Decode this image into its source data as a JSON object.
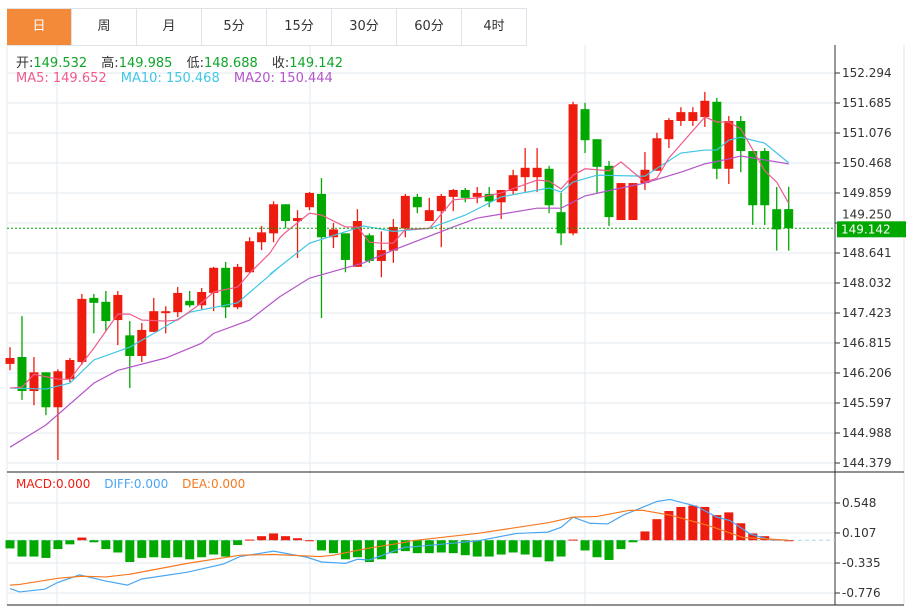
{
  "tabs": [
    "日",
    "周",
    "月",
    "5分",
    "15分",
    "30分",
    "60分",
    "4时"
  ],
  "active_tab": 0,
  "ohlc": {
    "open_label": "开:",
    "open": "149.532",
    "high_label": "高:",
    "high": "149.985",
    "low_label": "低:",
    "low": "148.688",
    "close_label": "收:",
    "close": "149.142"
  },
  "ma": {
    "ma5": "MA5: 149.652",
    "ma10": "MA10: 150.468",
    "ma20": "MA20: 150.444"
  },
  "macd_info": {
    "macd": "MACD:0.000",
    "diff": "DIFF:0.000",
    "dea": "DEA:0.000"
  },
  "colors": {
    "up": "#ee1c0f",
    "down": "#00a800",
    "ma5": "#ef5b8c",
    "ma10": "#3fc6e3",
    "ma20": "#b455c8",
    "diff": "#4aa6f2",
    "dea": "#f57a22",
    "accent": "#f28a3a"
  },
  "chart_data": {
    "type": "candlestick",
    "price_ticks": [
      "152.294",
      "151.685",
      "151.076",
      "150.468",
      "149.859",
      "149.250",
      "148.641",
      "148.032",
      "147.423",
      "146.815",
      "146.206",
      "145.597",
      "144.988",
      "144.379"
    ],
    "price_range": [
      144.379,
      152.294
    ],
    "last_price": "149.142",
    "macd_ticks": [
      "0.548",
      "0.107",
      "-0.335",
      "-0.776"
    ],
    "macd_range": [
      -0.776,
      0.548
    ],
    "candles": [
      [
        146.39,
        146.73,
        146.26,
        146.51
      ],
      [
        146.53,
        147.36,
        145.66,
        145.84
      ],
      [
        145.84,
        146.53,
        145.55,
        146.22
      ],
      [
        146.22,
        146.22,
        145.35,
        145.51
      ],
      [
        145.51,
        146.28,
        144.44,
        146.24
      ],
      [
        146.08,
        146.51,
        146.02,
        146.47
      ],
      [
        146.43,
        147.81,
        146.37,
        147.71
      ],
      [
        147.73,
        147.81,
        147.01,
        147.63
      ],
      [
        147.65,
        147.87,
        147.04,
        147.26
      ],
      [
        147.28,
        147.87,
        146.77,
        147.79
      ],
      [
        146.97,
        147.26,
        145.9,
        146.55
      ],
      [
        146.55,
        147.22,
        146.43,
        147.08
      ],
      [
        147.04,
        147.73,
        147.04,
        147.46
      ],
      [
        147.42,
        147.56,
        147.01,
        147.46
      ],
      [
        147.44,
        147.95,
        147.34,
        147.83
      ],
      [
        147.67,
        147.87,
        147.54,
        147.58
      ],
      [
        147.58,
        147.93,
        147.5,
        147.85
      ],
      [
        147.83,
        148.36,
        147.46,
        148.34
      ],
      [
        148.34,
        148.46,
        147.32,
        147.54
      ],
      [
        147.54,
        148.42,
        147.5,
        148.36
      ],
      [
        148.25,
        148.96,
        148.23,
        148.88
      ],
      [
        148.86,
        149.19,
        148.7,
        149.06
      ],
      [
        149.04,
        149.69,
        148.86,
        149.63
      ],
      [
        149.63,
        149.63,
        149.14,
        149.29
      ],
      [
        149.29,
        149.51,
        148.54,
        149.35
      ],
      [
        149.57,
        149.88,
        149.51,
        149.86
      ],
      [
        149.84,
        150.16,
        147.32,
        148.96
      ],
      [
        148.96,
        149.25,
        148.74,
        149.12
      ],
      [
        149.04,
        149.04,
        148.25,
        148.5
      ],
      [
        148.36,
        149.53,
        148.36,
        149.29
      ],
      [
        149.0,
        149.04,
        148.44,
        148.48
      ],
      [
        148.48,
        149.08,
        148.15,
        148.7
      ],
      [
        148.69,
        149.33,
        148.44,
        149.17
      ],
      [
        149.14,
        149.84,
        148.96,
        149.8
      ],
      [
        149.78,
        149.84,
        149.45,
        149.57
      ],
      [
        149.29,
        149.76,
        149.29,
        149.51
      ],
      [
        149.49,
        149.84,
        148.76,
        149.8
      ],
      [
        149.78,
        149.94,
        149.49,
        149.92
      ],
      [
        149.92,
        149.96,
        149.67,
        149.76
      ],
      [
        149.78,
        149.98,
        149.65,
        149.86
      ],
      [
        149.84,
        149.98,
        149.57,
        149.69
      ],
      [
        149.67,
        149.92,
        149.33,
        149.92
      ],
      [
        149.9,
        150.33,
        149.82,
        150.22
      ],
      [
        150.18,
        150.77,
        149.88,
        150.37
      ],
      [
        150.18,
        150.77,
        149.88,
        150.37
      ],
      [
        150.35,
        150.41,
        149.45,
        149.61
      ],
      [
        149.47,
        149.86,
        148.8,
        149.04
      ],
      [
        149.04,
        151.71,
        149.0,
        151.66
      ],
      [
        151.56,
        151.69,
        150.67,
        150.93
      ],
      [
        150.95,
        150.95,
        149.86,
        150.39
      ],
      [
        150.41,
        150.51,
        149.19,
        149.37
      ],
      [
        149.31,
        150.06,
        149.31,
        150.06
      ],
      [
        149.31,
        150.06,
        149.31,
        150.06
      ],
      [
        150.06,
        150.69,
        149.92,
        150.33
      ],
      [
        150.31,
        151.08,
        150.31,
        150.97
      ],
      [
        150.95,
        151.38,
        150.77,
        151.34
      ],
      [
        151.32,
        151.6,
        151.22,
        151.5
      ],
      [
        151.32,
        151.6,
        151.22,
        151.5
      ],
      [
        151.4,
        151.91,
        151.2,
        151.73
      ],
      [
        151.71,
        151.79,
        150.14,
        150.35
      ],
      [
        150.35,
        151.42,
        150.04,
        151.32
      ],
      [
        151.32,
        151.42,
        150.28,
        150.71
      ],
      [
        150.71,
        150.71,
        149.21,
        149.61
      ],
      [
        150.71,
        150.77,
        149.21,
        149.61
      ],
      [
        149.53,
        149.98,
        148.69,
        149.12
      ],
      [
        149.532,
        149.985,
        148.688,
        149.142
      ]
    ],
    "ma5": [
      [
        0,
        145.9
      ],
      [
        1,
        145.92
      ],
      [
        2,
        146.18
      ],
      [
        4,
        146.08
      ],
      [
        5,
        146.08
      ],
      [
        7,
        146.71
      ],
      [
        9,
        147.4
      ],
      [
        10,
        147.4
      ],
      [
        11,
        147.28
      ],
      [
        13,
        147.26
      ],
      [
        14,
        147.28
      ],
      [
        16,
        147.63
      ],
      [
        17,
        147.85
      ],
      [
        19,
        147.95
      ],
      [
        20,
        148.23
      ],
      [
        21.7,
        148.64
      ],
      [
        22.5,
        148.94
      ],
      [
        23,
        149.06
      ],
      [
        25,
        149.45
      ],
      [
        26,
        149.41
      ],
      [
        28,
        149.17
      ],
      [
        29,
        149.17
      ],
      [
        30,
        148.86
      ],
      [
        31,
        148.84
      ],
      [
        32,
        148.84
      ],
      [
        33,
        149.12
      ],
      [
        35,
        149.14
      ],
      [
        37,
        149.72
      ],
      [
        39,
        149.76
      ],
      [
        41,
        149.86
      ],
      [
        44,
        150.12
      ],
      [
        45,
        150.1
      ],
      [
        46,
        149.94
      ],
      [
        47,
        150.22
      ],
      [
        48,
        150.35
      ],
      [
        50,
        150.31
      ],
      [
        51,
        150.49
      ],
      [
        53,
        150.08
      ],
      [
        54,
        150.16
      ],
      [
        55,
        150.57
      ],
      [
        58,
        151.4
      ],
      [
        59,
        151.3
      ],
      [
        60,
        151.3
      ],
      [
        61,
        151.16
      ],
      [
        63,
        150.31
      ],
      [
        64,
        150.08
      ],
      [
        65,
        149.65
      ]
    ],
    "ma10": [
      [
        0,
        145.9
      ],
      [
        3,
        145.88
      ],
      [
        5,
        146.0
      ],
      [
        7,
        146.47
      ],
      [
        10,
        146.73
      ],
      [
        12,
        147.01
      ],
      [
        15,
        147.44
      ],
      [
        19,
        147.63
      ],
      [
        22.5,
        148.36
      ],
      [
        21.7,
        148.21
      ],
      [
        25,
        148.84
      ],
      [
        29.5,
        149.19
      ],
      [
        32,
        149.08
      ],
      [
        35,
        149.14
      ],
      [
        38,
        149.41
      ],
      [
        41,
        149.78
      ],
      [
        45,
        149.96
      ],
      [
        46,
        149.88
      ],
      [
        47,
        150.08
      ],
      [
        49,
        150.22
      ],
      [
        53,
        150.2
      ],
      [
        56,
        150.67
      ],
      [
        58,
        150.73
      ],
      [
        59,
        150.73
      ],
      [
        60,
        150.93
      ],
      [
        61,
        150.99
      ],
      [
        63,
        150.87
      ],
      [
        65,
        150.47
      ]
    ],
    "ma20": [
      [
        0,
        144.7
      ],
      [
        3,
        145.15
      ],
      [
        7,
        146.0
      ],
      [
        9,
        146.26
      ],
      [
        13,
        146.51
      ],
      [
        16,
        146.81
      ],
      [
        17,
        147.01
      ],
      [
        20,
        147.28
      ],
      [
        22.5,
        147.75
      ],
      [
        25,
        148.13
      ],
      [
        29.5,
        148.44
      ],
      [
        32,
        148.7
      ],
      [
        37,
        149.17
      ],
      [
        39,
        149.35
      ],
      [
        41,
        149.43
      ],
      [
        44,
        149.55
      ],
      [
        46,
        149.55
      ],
      [
        48,
        149.8
      ],
      [
        51,
        149.96
      ],
      [
        53,
        150.06
      ],
      [
        56,
        150.28
      ],
      [
        58,
        150.45
      ],
      [
        60,
        150.55
      ],
      [
        61,
        150.61
      ],
      [
        63,
        150.53
      ],
      [
        65,
        150.45
      ]
    ],
    "macd_hist": [
      -0.12,
      -0.24,
      -0.24,
      -0.26,
      -0.13,
      -0.06,
      0.04,
      -0.03,
      -0.13,
      -0.18,
      -0.32,
      -0.26,
      -0.25,
      -0.26,
      -0.25,
      -0.28,
      -0.25,
      -0.21,
      -0.24,
      -0.07,
      0.01,
      0.06,
      0.1,
      0.06,
      0.03,
      0.0,
      -0.15,
      -0.19,
      -0.28,
      -0.25,
      -0.32,
      -0.28,
      -0.19,
      -0.16,
      -0.19,
      -0.19,
      -0.18,
      -0.19,
      -0.22,
      -0.24,
      -0.24,
      -0.21,
      -0.18,
      -0.21,
      -0.25,
      -0.31,
      -0.24,
      0.01,
      -0.15,
      -0.25,
      -0.29,
      -0.13,
      -0.03,
      0.13,
      0.31,
      0.43,
      0.49,
      0.51,
      0.49,
      0.37,
      0.41,
      0.25,
      0.1,
      0.06,
      0.01,
      0.0
    ],
    "diff": [
      [
        0,
        -0.71
      ],
      [
        0.8,
        -0.76
      ],
      [
        2.9,
        -0.72
      ],
      [
        4,
        -0.62
      ],
      [
        5.8,
        -0.51
      ],
      [
        8,
        -0.6
      ],
      [
        9.8,
        -0.66
      ],
      [
        11,
        -0.57
      ],
      [
        14.8,
        -0.47
      ],
      [
        17.8,
        -0.35
      ],
      [
        19.2,
        -0.24
      ],
      [
        22,
        -0.16
      ],
      [
        24.8,
        -0.25
      ],
      [
        26,
        -0.32
      ],
      [
        28,
        -0.34
      ],
      [
        29,
        -0.28
      ],
      [
        30,
        -0.29
      ],
      [
        33,
        -0.1
      ],
      [
        33.4,
        -0.1
      ],
      [
        39,
        -0.01
      ],
      [
        42.3,
        0.1
      ],
      [
        44.9,
        0.12
      ],
      [
        46,
        0.19
      ],
      [
        47,
        0.34
      ],
      [
        48.4,
        0.25
      ],
      [
        49.9,
        0.24
      ],
      [
        51.2,
        0.37
      ],
      [
        54,
        0.57
      ],
      [
        55.1,
        0.6
      ],
      [
        57.3,
        0.5
      ],
      [
        59,
        0.34
      ],
      [
        60.1,
        0.29
      ],
      [
        61.8,
        0.09
      ],
      [
        63.4,
        0.01
      ],
      [
        65,
        0.0
      ]
    ],
    "dea": [
      [
        0,
        -0.66
      ],
      [
        0.8,
        -0.65
      ],
      [
        4,
        -0.56
      ],
      [
        6,
        -0.53
      ],
      [
        8,
        -0.54
      ],
      [
        10,
        -0.5
      ],
      [
        14.8,
        -0.34
      ],
      [
        19.2,
        -0.22
      ],
      [
        22,
        -0.21
      ],
      [
        25.9,
        -0.24
      ],
      [
        27,
        -0.22
      ],
      [
        29.8,
        -0.12
      ],
      [
        33,
        -0.03
      ],
      [
        33.4,
        -0.01
      ],
      [
        39,
        0.1
      ],
      [
        45,
        0.26
      ],
      [
        47,
        0.34
      ],
      [
        49,
        0.35
      ],
      [
        51.7,
        0.44
      ],
      [
        52.8,
        0.44
      ],
      [
        55.1,
        0.37
      ],
      [
        58.4,
        0.21
      ],
      [
        61.2,
        0.04
      ],
      [
        65,
        0.0
      ]
    ]
  }
}
